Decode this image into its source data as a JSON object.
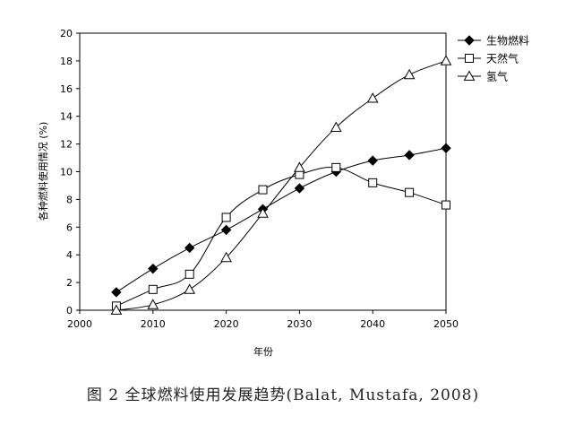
{
  "caption": "图 2  全球燃料使用发展趋势(Balat, Mustafa, 2008)",
  "chart_data": {
    "type": "line",
    "xlabel": "年份",
    "ylabel": "各种燃料使用情况 (%)",
    "xlim": [
      2000,
      2050
    ],
    "ylim": [
      0,
      20
    ],
    "xticks": [
      2000,
      2010,
      2020,
      2030,
      2040,
      2050
    ],
    "yticks": [
      0,
      2,
      4,
      6,
      8,
      10,
      12,
      14,
      16,
      18,
      20
    ],
    "grid": false,
    "legend_position": "top-right",
    "x": [
      2005,
      2010,
      2015,
      2020,
      2025,
      2030,
      2035,
      2040,
      2045,
      2050
    ],
    "series": [
      {
        "name": "生物燃料",
        "marker": "filled-diamond",
        "color": "#000000",
        "values": [
          1.3,
          3.0,
          4.5,
          5.8,
          7.3,
          8.8,
          10.0,
          10.8,
          11.2,
          11.7
        ]
      },
      {
        "name": "天然气",
        "marker": "hollow-square",
        "color": "#000000",
        "values": [
          0.3,
          1.5,
          2.6,
          6.7,
          8.7,
          9.8,
          10.3,
          9.2,
          8.5,
          7.6
        ]
      },
      {
        "name": "氢气",
        "marker": "hollow-triangle",
        "color": "#000000",
        "values": [
          0.0,
          0.4,
          1.5,
          3.8,
          7.0,
          10.3,
          13.2,
          15.3,
          17.0,
          18.0
        ]
      }
    ]
  }
}
